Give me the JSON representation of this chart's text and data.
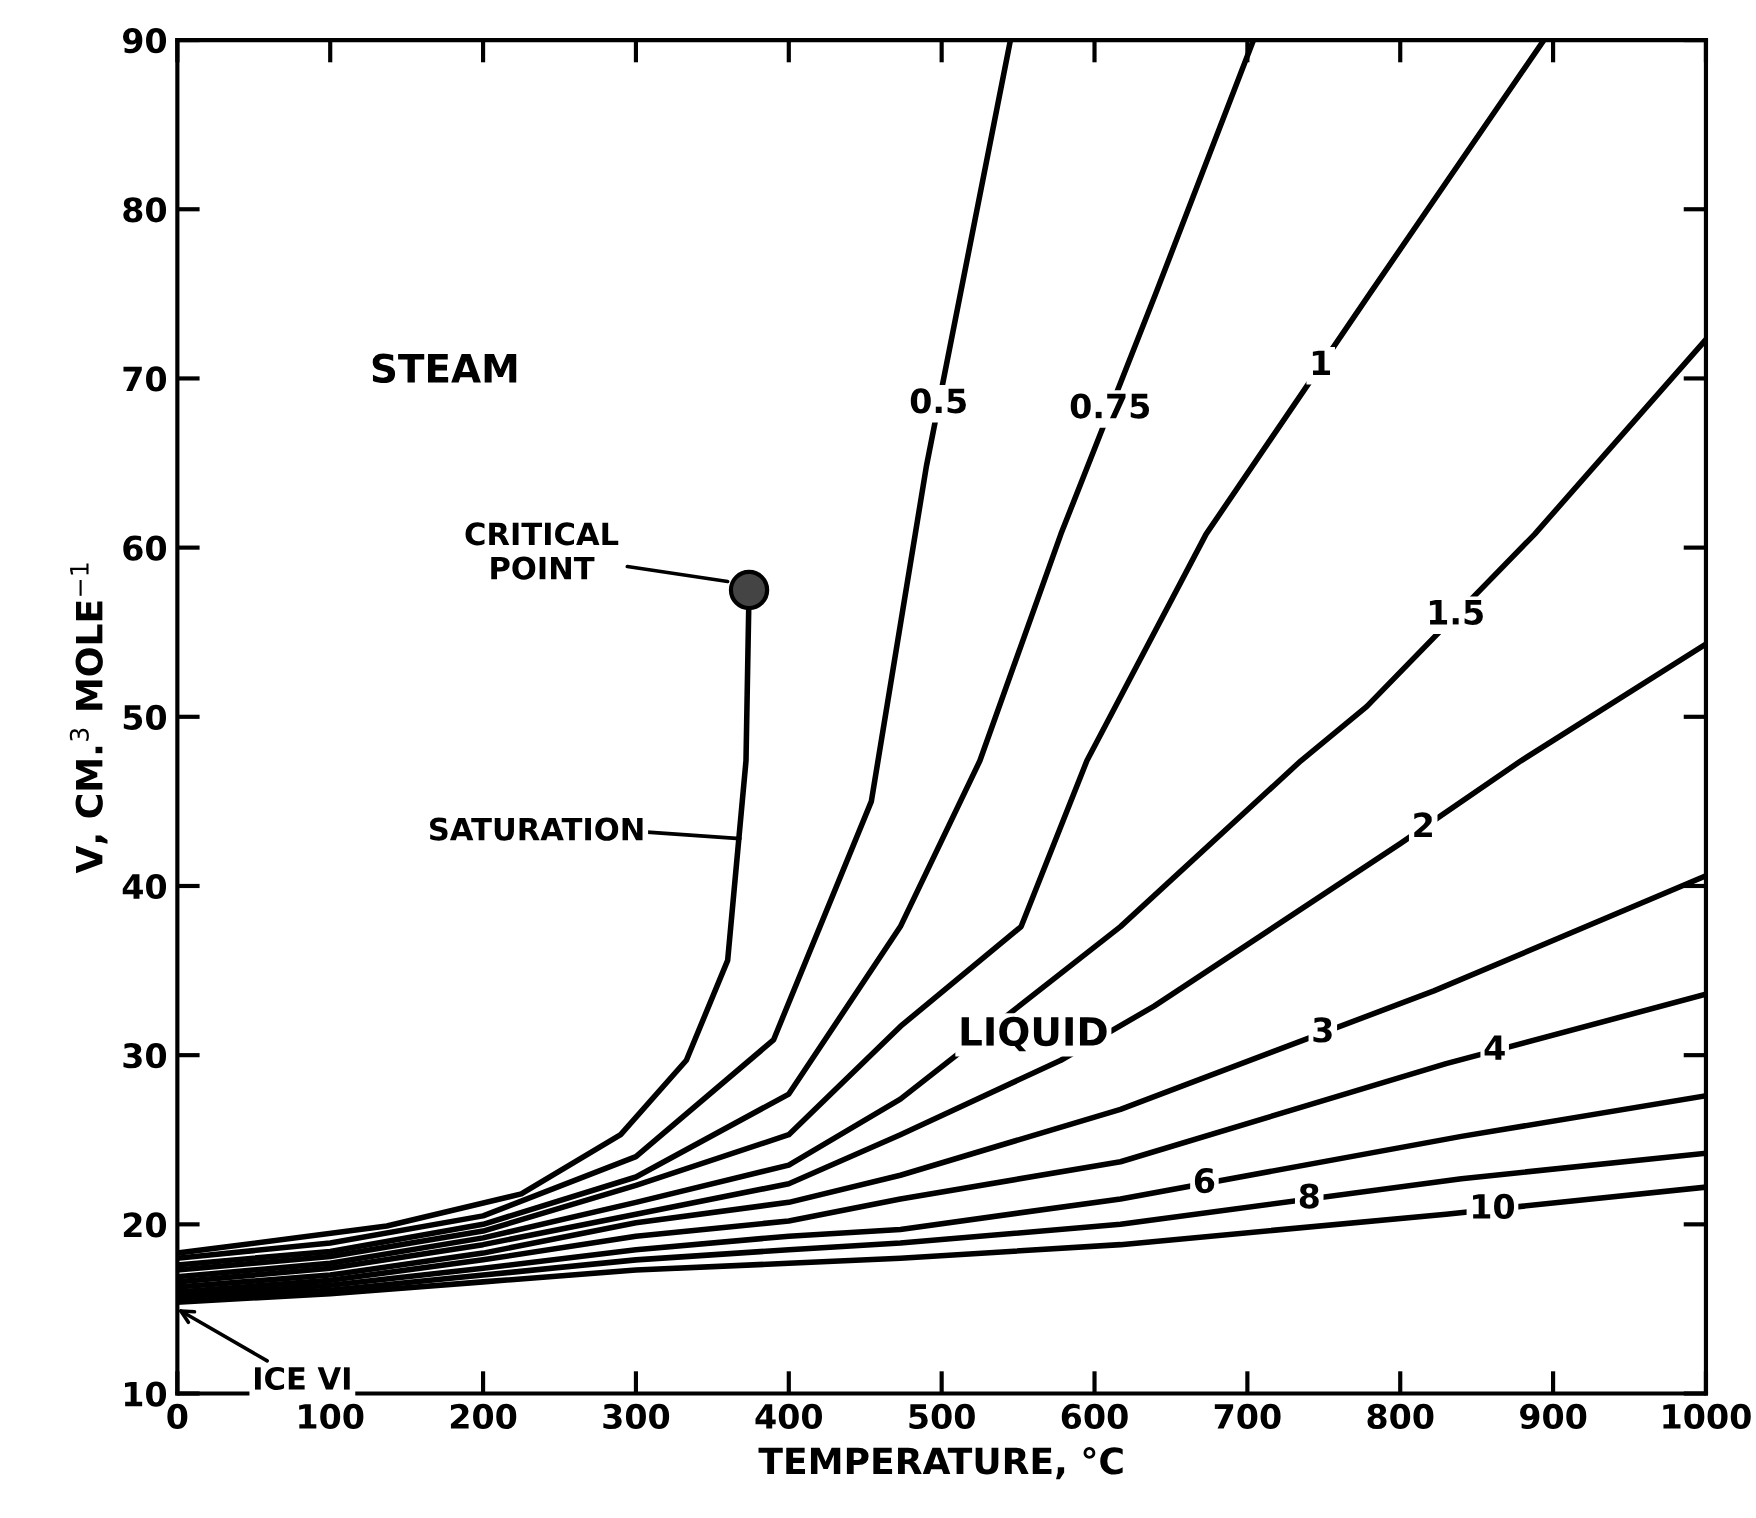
{
  "chart_data": {
    "type": "line",
    "xlabel": "TEMPERATURE, °C",
    "ylabel": "V, CM.$^{3}$ MOLE$^{−1}$",
    "xlim": [
      0,
      1000
    ],
    "xticks": [
      0,
      100,
      200,
      300,
      400,
      500,
      600,
      700,
      800,
      900,
      1000
    ],
    "ylim": [
      10,
      90
    ],
    "yticks": [
      10,
      20,
      30,
      40,
      50,
      60,
      70,
      80,
      90
    ],
    "grid": false,
    "legend": false,
    "marker": "none",
    "line_style": "solid",
    "series": [
      {
        "color": "#000000",
        "x": [
          0,
          137,
          225,
          290,
          333,
          360,
          372,
          374
        ],
        "values": [
          18.3,
          19.9,
          21.8,
          25.3,
          29.7,
          35.6,
          47.4,
          57.5
        ]
      },
      {
        "name": "0.5",
        "color": "#000000",
        "x": [
          0,
          100,
          200,
          300,
          390,
          454,
          490,
          545
        ],
        "values": [
          18.0,
          18.9,
          20.5,
          24.0,
          30.9,
          45,
          64.8,
          90
        ]
      },
      {
        "name": "0.75",
        "color": "#000000",
        "x": [
          0,
          100,
          200,
          300,
          400,
          473,
          525,
          578,
          640,
          704
        ],
        "values": [
          17.6,
          18.4,
          20.0,
          22.8,
          27.7,
          37.6,
          47.4,
          60.8,
          75,
          90
        ]
      },
      {
        "name": "1",
        "color": "#000000",
        "x": [
          0,
          100,
          200,
          300,
          400,
          473,
          552,
          595,
          673,
          780,
          894
        ],
        "values": [
          17.3,
          18.1,
          19.6,
          22.3,
          25.3,
          31.7,
          37.6,
          47.4,
          60.8,
          75,
          90
        ]
      },
      {
        "name": "1.5",
        "color": "#000000",
        "x": [
          0,
          100,
          200,
          300,
          400,
          473,
          617,
          735,
          778,
          888,
          1000
        ],
        "values": [
          16.9,
          17.7,
          19.2,
          21.3,
          23.5,
          27.4,
          37.6,
          47.4,
          50.6,
          60.8,
          72.3
        ]
      },
      {
        "name": "2",
        "color": "#000000",
        "x": [
          0,
          100,
          200,
          300,
          400,
          473,
          578,
          639,
          800,
          879,
          1000
        ],
        "values": [
          16.6,
          17.4,
          18.8,
          20.6,
          22.4,
          25.3,
          29.7,
          32.9,
          42.5,
          47.4,
          54.3
        ]
      },
      {
        "name": "3",
        "color": "#000000",
        "x": [
          0,
          100,
          200,
          300,
          400,
          473,
          617,
          822,
          1000
        ],
        "values": [
          16.3,
          17.0,
          18.3,
          20.1,
          21.3,
          22.9,
          26.8,
          33.8,
          40.6
        ]
      },
      {
        "name": "4",
        "color": "#000000",
        "x": [
          0,
          100,
          200,
          300,
          400,
          473,
          617,
          830,
          1000
        ],
        "values": [
          16.0,
          16.7,
          17.9,
          19.3,
          20.2,
          21.5,
          23.7,
          29.5,
          33.6
        ]
      },
      {
        "name": "6",
        "color": "#000000",
        "x": [
          0,
          100,
          200,
          300,
          400,
          473,
          617,
          840,
          1000
        ],
        "values": [
          15.8,
          16.4,
          17.4,
          18.5,
          19.3,
          19.7,
          21.5,
          25.2,
          27.6
        ]
      },
      {
        "name": "8",
        "color": "#000000",
        "x": [
          0,
          100,
          200,
          300,
          400,
          473,
          617,
          840,
          1000
        ],
        "values": [
          15.6,
          16.1,
          17.0,
          17.9,
          18.5,
          18.9,
          20.0,
          22.7,
          24.2
        ]
      },
      {
        "name": "10",
        "color": "#000000",
        "x": [
          0,
          100,
          200,
          300,
          400,
          473,
          617,
          830,
          1000
        ],
        "values": [
          15.4,
          15.9,
          16.6,
          17.3,
          17.7,
          18.0,
          18.8,
          20.6,
          22.2
        ]
      },
      {
        "type": "scatter",
        "marker": "circle",
        "color": "#444444",
        "x": [
          374
        ],
        "values": [
          57.5
        ]
      }
    ],
    "annotations": [
      "STEAM",
      "LIQUID",
      {
        "text": "CRITICAL\nPOINT",
        "x": 360,
        "y": 58
      },
      "SATURATION",
      {
        "text": "ICE VI",
        "x": 0,
        "y": 15
      }
    ]
  }
}
